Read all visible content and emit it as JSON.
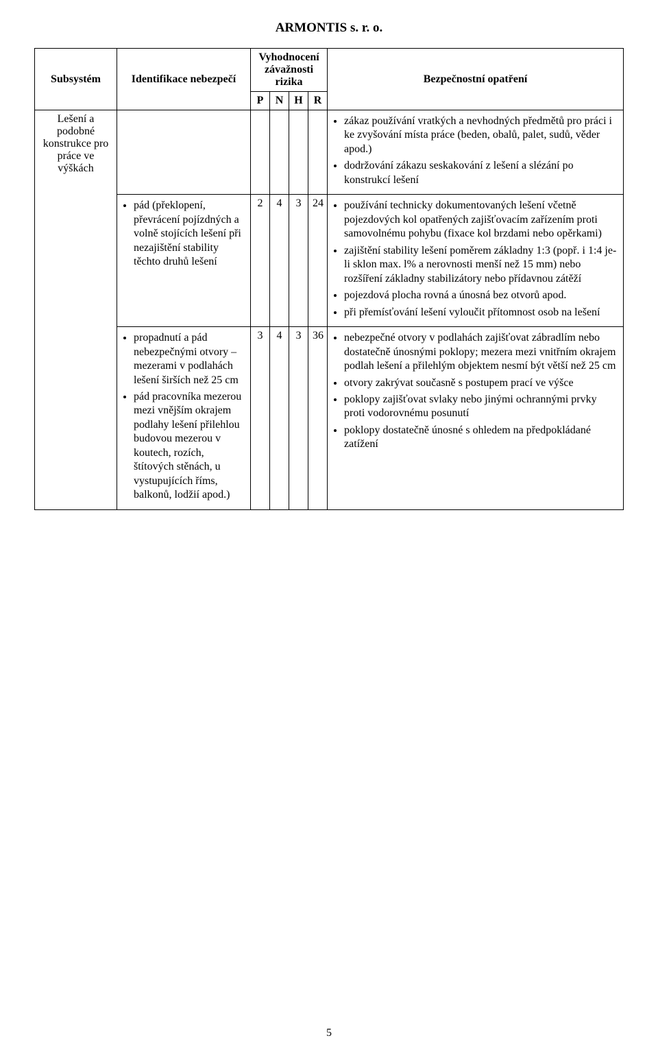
{
  "doc_title": "ARMONTIS s. r. o.",
  "table": {
    "headers": {
      "subsystem": "Subsystém",
      "identification": "Identifikace nebezpečí",
      "evaluation": "Vyhodnocení závažnosti rizika",
      "p": "P",
      "n": "N",
      "h": "H",
      "r": "R",
      "measures": "Bezpečnostní opatření"
    },
    "subsystem": "Lešení a podobné konstrukce pro práce ve výškách",
    "rows": [
      {
        "ident": [],
        "p": "",
        "n": "",
        "h": "",
        "r": "",
        "measures": [
          "zákaz používání vratkých a nevhodných předmětů pro práci i ke zvyšování místa práce (beden, obalů, palet, sudů, věder apod.)",
          "dodržování zákazu seskakování z lešení a slézání po konstrukcí lešení"
        ]
      },
      {
        "ident": [
          "pád (překlopení, převrácení pojízdných a volně stojících lešení při nezajištění stability těchto druhů lešení"
        ],
        "p": "2",
        "n": "4",
        "h": "3",
        "r": "24",
        "measures": [
          "používání technicky dokumentovaných lešení včetně pojezdových kol opatřených zajišťovacím zařízením proti samovolnému pohybu (fixace kol brzdami nebo opěrkami)",
          "zajištění stability lešení poměrem základny 1:3 (popř. i 1:4 je-li sklon max. l% a nerovnosti menší než 15 mm) nebo rozšíření základny stabilizátory nebo přídavnou zátěží",
          "pojezdová plocha rovná a únosná bez otvorů apod.",
          " při přemísťování lešení vyloučit přítomnost osob na lešení"
        ]
      },
      {
        "ident": [
          "propadnutí a pád nebezpečnými otvory – mezerami v podlahách lešení širších než 25 cm",
          "pád pracovníka mezerou mezi vnějším okrajem podlahy lešení přilehlou budovou mezerou v koutech, rozích, štítových stěnách, u vystupujících říms, balkonů, lodžií apod.)"
        ],
        "p": "3",
        "n": "4",
        "h": "3",
        "r": "36",
        "measures": [
          "nebezpečné otvory v podlahách zajišťovat zábradlím nebo dostatečně únosnými poklopy; mezera mezi vnitřním okrajem podlah lešení a přilehlým objektem nesmí být větší než 25 cm",
          "otvory zakrývat současně s postupem prací ve výšce",
          " poklopy zajišťovat svlaky nebo jinými ochrannými prvky proti vodorovnému posunutí",
          "poklopy dostatečně únosné s ohledem na předpokládané zatížení"
        ]
      }
    ]
  },
  "page_number": "5"
}
